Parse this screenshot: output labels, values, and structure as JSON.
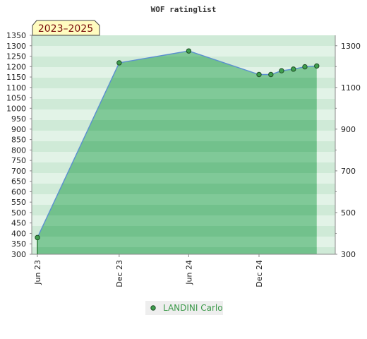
{
  "chart_data": {
    "type": "area",
    "title": "WOF ratinglist",
    "period_badge": "2023–2025",
    "x_ticks": [
      "Jun 23",
      "Dec 23",
      "Jun 24",
      "Dec 24"
    ],
    "xlim": [
      "2023-06-01",
      "2025-07-01"
    ],
    "ylim": [
      300,
      1350
    ],
    "y_ticks_left": [
      300,
      350,
      400,
      450,
      500,
      550,
      600,
      650,
      700,
      750,
      800,
      850,
      900,
      950,
      1000,
      1050,
      1100,
      1150,
      1200,
      1250,
      1300,
      1350
    ],
    "y_ticks_right": [
      300,
      500,
      700,
      900,
      1100,
      1300
    ],
    "series": [
      {
        "name": "LANDINI Carlo",
        "x": [
          "2023-06-01",
          "2024-01-01",
          "2024-07-01",
          "2025-01-01",
          "2025-02-01",
          "2025-03-01",
          "2025-04-01",
          "2025-05-01",
          "2025-06-01"
        ],
        "values": [
          380,
          1218,
          1275,
          1162,
          1162,
          1180,
          1188,
          1199,
          1203
        ]
      }
    ],
    "legend": "bottom-center",
    "colors": {
      "area": "#6ec18a",
      "line": "#5b8fd0",
      "marker": "#3f9f4e",
      "marker_border": "#1c4d24",
      "badge_bg": "#fffcc0",
      "legend_text": "#3c9a4a"
    }
  }
}
